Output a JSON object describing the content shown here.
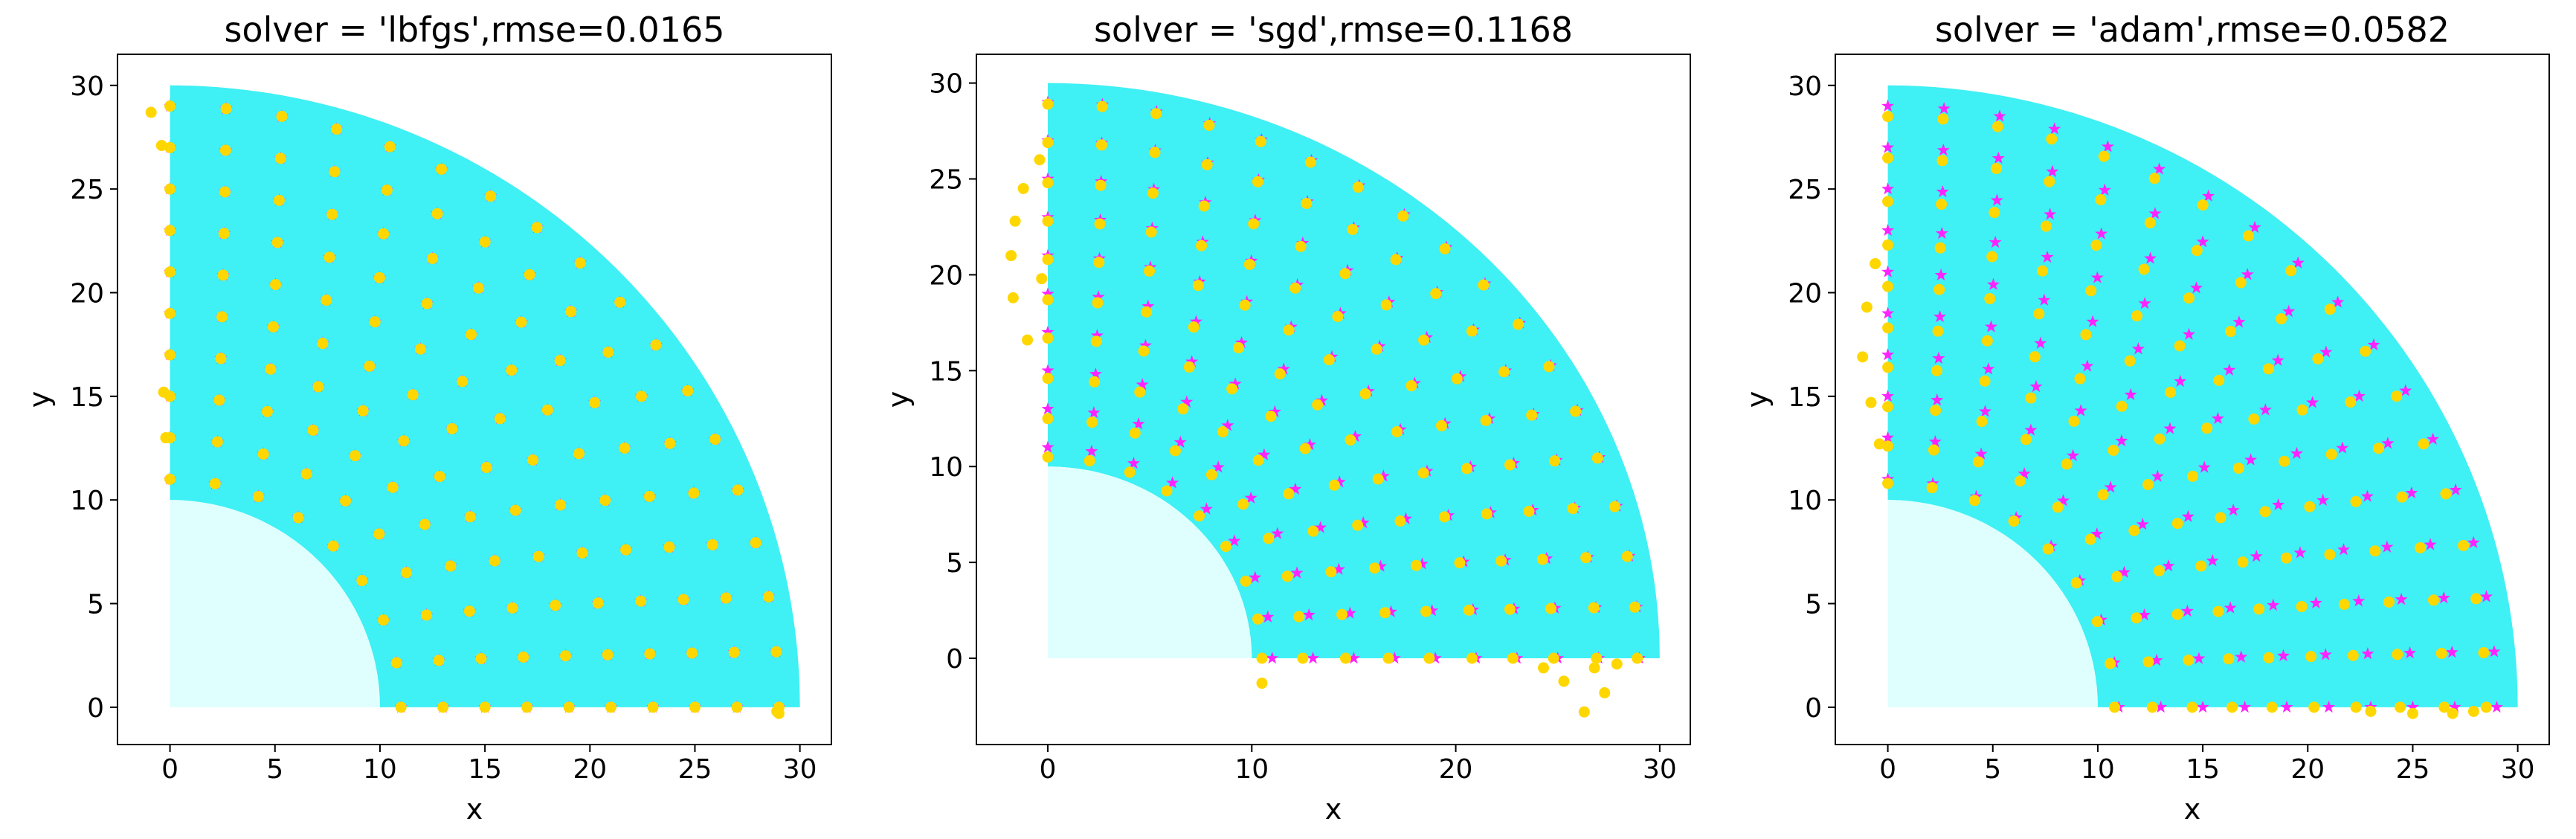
{
  "chart_data": [
    {
      "type": "scatter",
      "title": "solver = 'lbfgs',rmse=0.0165",
      "xlabel": "x",
      "ylabel": "y",
      "xlim": [
        -2.5,
        31.5
      ],
      "ylim": [
        -1.8,
        31.5
      ],
      "xticks": [
        0,
        5,
        10,
        15,
        20,
        25,
        30
      ],
      "yticks": [
        0,
        5,
        10,
        15,
        20,
        25,
        30
      ],
      "region": {
        "inner_radius": 10,
        "outer_radius": 30,
        "inner_fill": "#dfffff",
        "outer_fill": "#3ff0f4"
      },
      "series": [
        {
          "marker": "star",
          "color": "#ff22ff",
          "layout": "polar",
          "radii": [
            11,
            13,
            15,
            17,
            19,
            21,
            23,
            25,
            27,
            29
          ],
          "counts": [
            9,
            10,
            11,
            12,
            13,
            14,
            15,
            16,
            17,
            18
          ]
        },
        {
          "marker": "circle",
          "color": "#ffd700",
          "layout": "polar",
          "radii": [
            11,
            13,
            15,
            17,
            19,
            21,
            23,
            25,
            27,
            29
          ],
          "counts": [
            9,
            10,
            11,
            12,
            13,
            14,
            15,
            16,
            17,
            18
          ],
          "extra_points": [
            [
              -0.9,
              28.7
            ],
            [
              -0.4,
              27.1
            ],
            [
              -0.3,
              15.2
            ],
            [
              -0.2,
              13.0
            ],
            [
              29.0,
              -0.3
            ],
            [
              28.9,
              -0.2
            ]
          ]
        }
      ]
    },
    {
      "type": "scatter",
      "title": "solver = 'sgd',rmse=0.1168",
      "xlabel": "x",
      "ylabel": "y",
      "xlim": [
        -3.5,
        31.5
      ],
      "ylim": [
        -4.5,
        31.5
      ],
      "xticks": [
        0,
        10,
        20,
        30
      ],
      "yticks": [
        0,
        5,
        10,
        15,
        20,
        25,
        30
      ],
      "region": {
        "inner_radius": 10,
        "outer_radius": 30,
        "inner_fill": "#dfffff",
        "outer_fill": "#3ff0f4"
      },
      "series": [
        {
          "marker": "star",
          "color": "#ff22ff",
          "layout": "polar",
          "radii": [
            11,
            13,
            15,
            17,
            19,
            21,
            23,
            25,
            27,
            29
          ],
          "counts": [
            9,
            10,
            11,
            12,
            13,
            14,
            15,
            16,
            17,
            18
          ]
        },
        {
          "marker": "circle",
          "color": "#ffd700",
          "layout": "polar",
          "radii": [
            10.5,
            12.5,
            14.6,
            16.7,
            18.7,
            20.8,
            22.8,
            24.8,
            26.9,
            28.9
          ],
          "counts": [
            9,
            10,
            11,
            12,
            13,
            14,
            15,
            16,
            17,
            18
          ],
          "extra_points": [
            [
              -1.8,
              21.0
            ],
            [
              -1.6,
              22.8
            ],
            [
              -1.2,
              24.5
            ],
            [
              -0.4,
              26.0
            ],
            [
              -1.7,
              18.8
            ],
            [
              -1.0,
              16.6
            ],
            [
              -0.3,
              19.8
            ],
            [
              10.5,
              -1.3
            ],
            [
              24.3,
              -0.5
            ],
            [
              25.3,
              -1.2
            ],
            [
              26.3,
              -2.8
            ],
            [
              27.3,
              -1.8
            ],
            [
              26.8,
              -0.5
            ],
            [
              27.9,
              -0.3
            ]
          ]
        }
      ]
    },
    {
      "type": "scatter",
      "title": "solver = 'adam',rmse=0.0582",
      "xlabel": "x",
      "ylabel": "y",
      "xlim": [
        -2.5,
        31.5
      ],
      "ylim": [
        -1.8,
        31.5
      ],
      "xticks": [
        0,
        5,
        10,
        15,
        20,
        25,
        30
      ],
      "yticks": [
        0,
        5,
        10,
        15,
        20,
        25,
        30
      ],
      "region": {
        "inner_radius": 10,
        "outer_radius": 30,
        "inner_fill": "#dfffff",
        "outer_fill": "#3ff0f4"
      },
      "series": [
        {
          "marker": "star",
          "color": "#ff22ff",
          "layout": "polar",
          "radii": [
            11,
            13,
            15,
            17,
            19,
            21,
            23,
            25,
            27,
            29
          ],
          "counts": [
            9,
            10,
            11,
            12,
            13,
            14,
            15,
            16,
            17,
            18
          ]
        },
        {
          "marker": "circle",
          "color": "#ffd700",
          "layout": "polar",
          "radii": [
            10.8,
            12.6,
            14.5,
            16.4,
            18.3,
            20.3,
            22.3,
            24.4,
            26.5,
            28.5
          ],
          "counts": [
            9,
            10,
            11,
            12,
            13,
            14,
            15,
            16,
            17,
            18
          ],
          "extra_points": [
            [
              -1.2,
              16.9
            ],
            [
              -1.0,
              19.3
            ],
            [
              -0.6,
              21.4
            ],
            [
              -0.8,
              14.7
            ],
            [
              -0.4,
              12.7
            ],
            [
              23.0,
              -0.2
            ],
            [
              25.0,
              -0.3
            ],
            [
              26.9,
              -0.3
            ],
            [
              27.9,
              -0.2
            ]
          ]
        }
      ]
    }
  ]
}
